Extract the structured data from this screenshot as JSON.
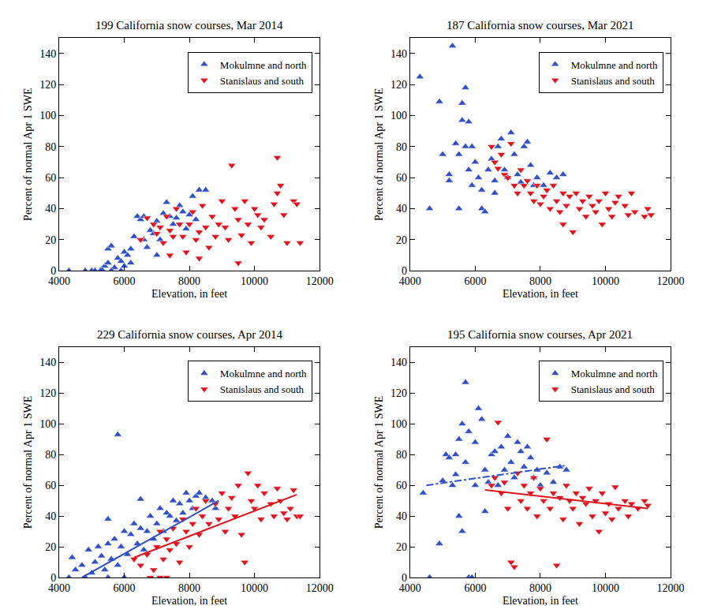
{
  "chart_data": [
    {
      "type": "scatter",
      "title": "199 California snow courses, Mar 2014",
      "x_label": "Elevation, in feet",
      "y_label": "Percent of normal Apr 1 SWE",
      "xlim": [
        4000,
        12000
      ],
      "xticks": [
        4000,
        6000,
        8000,
        10000,
        12000
      ],
      "ylim": [
        0,
        150
      ],
      "yticks": [
        0,
        20,
        40,
        60,
        80,
        100,
        120,
        140
      ],
      "grid": false,
      "legend": "upper right",
      "series": [
        {
          "name": "Mokulmne and north",
          "color": "#3050c8",
          "marker": "triangle-up",
          "x": [
            4300,
            4800,
            5000,
            5100,
            5300,
            5400,
            5500,
            5600,
            5500,
            5700,
            5800,
            5900,
            6000,
            6000,
            6100,
            6200,
            6300,
            6400,
            6500,
            6600,
            6700,
            6800,
            6900,
            7000,
            7100,
            7200,
            7300,
            7400,
            7500,
            7600,
            7700,
            7800,
            7900,
            8000,
            8100,
            8300,
            8500,
            8200,
            7000,
            6600,
            6200,
            5900,
            5600
          ],
          "values": [
            0,
            0,
            0,
            0,
            1,
            3,
            14,
            16,
            5,
            2,
            8,
            6,
            3,
            12,
            10,
            14,
            22,
            35,
            33,
            35,
            15,
            26,
            24,
            32,
            20,
            37,
            44,
            35,
            30,
            34,
            42,
            38,
            27,
            36,
            48,
            52,
            52,
            33,
            10,
            20,
            5,
            0,
            0
          ]
        },
        {
          "name": "Stanislaus and south",
          "color": "#e0141e",
          "marker": "triangle-down",
          "x": [
            6500,
            6700,
            6900,
            7000,
            7100,
            7200,
            7300,
            7400,
            7500,
            7600,
            7700,
            7800,
            7900,
            8000,
            8100,
            8200,
            8300,
            8400,
            8500,
            8600,
            8700,
            8800,
            8900,
            9000,
            9100,
            9200,
            9300,
            9400,
            9500,
            9600,
            9700,
            9800,
            9900,
            10000,
            10100,
            10200,
            10300,
            10500,
            10600,
            10700,
            10700,
            10800,
            10900,
            11000,
            11200,
            11300,
            11400,
            7400,
            8300,
            9500
          ],
          "values": [
            20,
            34,
            30,
            24,
            28,
            18,
            35,
            26,
            22,
            40,
            30,
            22,
            12,
            30,
            38,
            20,
            25,
            42,
            28,
            15,
            35,
            22,
            30,
            45,
            28,
            20,
            68,
            40,
            33,
            23,
            45,
            30,
            18,
            40,
            36,
            28,
            33,
            22,
            43,
            73,
            50,
            55,
            36,
            18,
            45,
            43,
            18,
            10,
            8,
            5
          ]
        }
      ]
    },
    {
      "type": "scatter",
      "title": "187 California snow courses, Mar 2021",
      "x_label": "Elevation, in feet",
      "y_label": "Percent of normal Apr 1 SWE",
      "xlim": [
        4000,
        12000
      ],
      "xticks": [
        4000,
        6000,
        8000,
        10000,
        12000
      ],
      "ylim": [
        0,
        150
      ],
      "yticks": [
        0,
        20,
        40,
        60,
        80,
        100,
        120,
        140
      ],
      "grid": false,
      "legend": "upper right",
      "series": [
        {
          "name": "Mokulmne and north",
          "color": "#3050c8",
          "marker": "triangle-up",
          "x": [
            4300,
            4600,
            4900,
            5000,
            5200,
            5300,
            5400,
            5500,
            5500,
            5600,
            5600,
            5700,
            5700,
            5800,
            5800,
            5900,
            5900,
            6000,
            6100,
            6200,
            6200,
            6300,
            6400,
            6500,
            6600,
            6700,
            6800,
            6900,
            7000,
            7100,
            7200,
            7300,
            7400,
            7500,
            7600,
            7700,
            7800,
            7900,
            8100,
            8300,
            8500,
            8700,
            6600,
            5200
          ],
          "values": [
            125,
            40,
            109,
            75,
            62,
            145,
            82,
            75,
            40,
            97,
            108,
            80,
            118,
            96,
            65,
            80,
            55,
            70,
            60,
            40,
            52,
            38,
            65,
            72,
            58,
            80,
            85,
            65,
            60,
            89,
            75,
            62,
            57,
            80,
            83,
            68,
            55,
            60,
            55,
            63,
            60,
            62,
            50,
            58
          ]
        },
        {
          "name": "Stanislaus and south",
          "color": "#e0141e",
          "marker": "triangle-down",
          "x": [
            6500,
            6600,
            6700,
            6800,
            6900,
            7000,
            7100,
            7200,
            7300,
            7400,
            7500,
            7600,
            7700,
            7800,
            7900,
            8000,
            8100,
            8200,
            8300,
            8400,
            8500,
            8600,
            8700,
            8800,
            8900,
            9000,
            9100,
            9200,
            9300,
            9400,
            9500,
            9600,
            9700,
            9800,
            9900,
            10000,
            10100,
            10200,
            10300,
            10400,
            10600,
            10700,
            10800,
            10900,
            11200,
            11300,
            11400,
            8700
          ],
          "values": [
            80,
            70,
            66,
            75,
            62,
            60,
            82,
            55,
            50,
            65,
            55,
            58,
            50,
            45,
            55,
            43,
            48,
            52,
            40,
            55,
            45,
            38,
            50,
            42,
            48,
            25,
            50,
            40,
            45,
            35,
            48,
            42,
            38,
            45,
            30,
            50,
            40,
            35,
            44,
            48,
            42,
            36,
            50,
            38,
            35,
            40,
            36,
            30
          ]
        }
      ]
    },
    {
      "type": "scatter",
      "title": "229 California snow courses, Apr 2014",
      "x_label": "Elevation, in feet",
      "y_label": "Percent of normal Apr 1 SWE",
      "xlim": [
        4000,
        12000
      ],
      "xticks": [
        4000,
        6000,
        8000,
        10000,
        12000
      ],
      "ylim": [
        0,
        150
      ],
      "yticks": [
        0,
        20,
        40,
        60,
        80,
        100,
        120,
        140
      ],
      "grid": false,
      "legend": "upper right",
      "series": [
        {
          "name": "Mokulmne and north",
          "color": "#3050c8",
          "marker": "triangle-up",
          "x": [
            4300,
            4400,
            4500,
            4700,
            4800,
            4900,
            5000,
            5100,
            5200,
            5300,
            5400,
            5500,
            5500,
            5600,
            5700,
            5800,
            5800,
            5900,
            6000,
            6100,
            6200,
            6300,
            6400,
            6500,
            6500,
            6600,
            6700,
            6800,
            6900,
            7000,
            7100,
            7200,
            7300,
            7400,
            7500,
            7600,
            7700,
            7800,
            7900,
            8000,
            8100,
            8200,
            8300,
            8500,
            8700,
            8800,
            6000,
            5500
          ],
          "values": [
            0,
            13,
            5,
            8,
            0,
            18,
            3,
            10,
            20,
            14,
            5,
            38,
            22,
            12,
            25,
            93,
            8,
            20,
            30,
            15,
            28,
            35,
            22,
            51,
            32,
            18,
            30,
            40,
            25,
            35,
            45,
            30,
            42,
            40,
            50,
            37,
            48,
            42,
            55,
            50,
            45,
            53,
            55,
            52,
            50,
            45,
            0,
            0
          ]
        },
        {
          "name": "Stanislaus and south",
          "color": "#e0141e",
          "marker": "triangle-down",
          "x": [
            6300,
            6500,
            6700,
            6800,
            6900,
            7000,
            7100,
            7200,
            7300,
            7400,
            7500,
            7600,
            7700,
            7800,
            7900,
            8000,
            8100,
            8200,
            8300,
            8400,
            8500,
            8600,
            8800,
            8900,
            9000,
            9100,
            9200,
            9300,
            9400,
            9500,
            9600,
            9700,
            9800,
            9900,
            10000,
            10100,
            10200,
            10300,
            10500,
            10600,
            10700,
            10800,
            10900,
            11000,
            11100,
            11200,
            11300,
            11400,
            7300,
            7100
          ],
          "values": [
            12,
            8,
            15,
            0,
            5,
            20,
            30,
            12,
            25,
            18,
            32,
            22,
            10,
            38,
            30,
            20,
            35,
            45,
            28,
            40,
            50,
            35,
            48,
            38,
            55,
            30,
            45,
            52,
            40,
            60,
            28,
            10,
            68,
            50,
            45,
            60,
            38,
            55,
            48,
            40,
            58,
            50,
            42,
            38,
            45,
            57,
            40,
            40,
            0,
            0
          ]
        },
        {
          "type": "line",
          "color": "#3050c8",
          "line_style": "solid",
          "x": [
            4700,
            8900
          ],
          "values": [
            0,
            50
          ]
        },
        {
          "type": "line",
          "color": "#e0141e",
          "line_style": "solid",
          "x": [
            6300,
            11300
          ],
          "values": [
            13,
            54
          ]
        }
      ]
    },
    {
      "type": "scatter",
      "title": "195 California snow courses, Apr 2021",
      "x_label": "Elevation, in feet",
      "y_label": "Percent of normal Apr 1 SWE",
      "xlim": [
        4000,
        12000
      ],
      "xticks": [
        4000,
        6000,
        8000,
        10000,
        12000
      ],
      "ylim": [
        0,
        150
      ],
      "yticks": [
        0,
        20,
        40,
        60,
        80,
        100,
        120,
        140
      ],
      "grid": false,
      "legend": "upper right",
      "series": [
        {
          "name": "Mokulmne and north",
          "color": "#3050c8",
          "marker": "triangle-up",
          "x": [
            4400,
            4600,
            4900,
            5000,
            5100,
            5200,
            5300,
            5400,
            5500,
            5500,
            5600,
            5600,
            5700,
            5700,
            5800,
            5800,
            5900,
            6000,
            6000,
            6100,
            6200,
            6300,
            6300,
            6400,
            6500,
            6600,
            6700,
            6800,
            6900,
            7000,
            7100,
            7200,
            7300,
            7400,
            7500,
            7600,
            7700,
            7800,
            7900,
            8000,
            8200,
            8400,
            8600,
            8800,
            5400
          ],
          "values": [
            55,
            0,
            22,
            63,
            80,
            78,
            60,
            67,
            90,
            40,
            30,
            100,
            127,
            75,
            95,
            0,
            0,
            88,
            60,
            110,
            103,
            70,
            43,
            62,
            80,
            82,
            60,
            85,
            70,
            92,
            75,
            65,
            88,
            82,
            72,
            85,
            78,
            65,
            70,
            60,
            68,
            62,
            72,
            70,
            80
          ]
        },
        {
          "name": "Stanislaus and south",
          "color": "#e0141e",
          "marker": "triangle-down",
          "x": [
            6500,
            6600,
            6700,
            6800,
            6900,
            7000,
            7100,
            7200,
            7300,
            7400,
            7500,
            7600,
            7700,
            7800,
            7900,
            8000,
            8100,
            8200,
            8300,
            8400,
            8500,
            8600,
            8700,
            8800,
            8900,
            9000,
            9100,
            9200,
            9300,
            9400,
            9500,
            9600,
            9700,
            9800,
            9900,
            10000,
            10100,
            10200,
            10300,
            10400,
            10600,
            10700,
            10800,
            11000,
            11200,
            11300
          ],
          "values": [
            60,
            65,
            101,
            55,
            62,
            45,
            10,
            7,
            68,
            50,
            60,
            45,
            55,
            65,
            40,
            58,
            50,
            90,
            45,
            55,
            8,
            52,
            38,
            60,
            50,
            45,
            55,
            35,
            52,
            48,
            58,
            40,
            50,
            30,
            55,
            42,
            48,
            38,
            59,
            45,
            50,
            40,
            48,
            45,
            50,
            47
          ]
        },
        {
          "type": "line",
          "color": "#3050c8",
          "line_style": "dashdot",
          "x": [
            4500,
            8800
          ],
          "values": [
            60,
            73
          ]
        },
        {
          "type": "line",
          "color": "#e0141e",
          "line_style": "solid",
          "x": [
            6300,
            11300
          ],
          "values": [
            57,
            45
          ]
        }
      ]
    }
  ]
}
